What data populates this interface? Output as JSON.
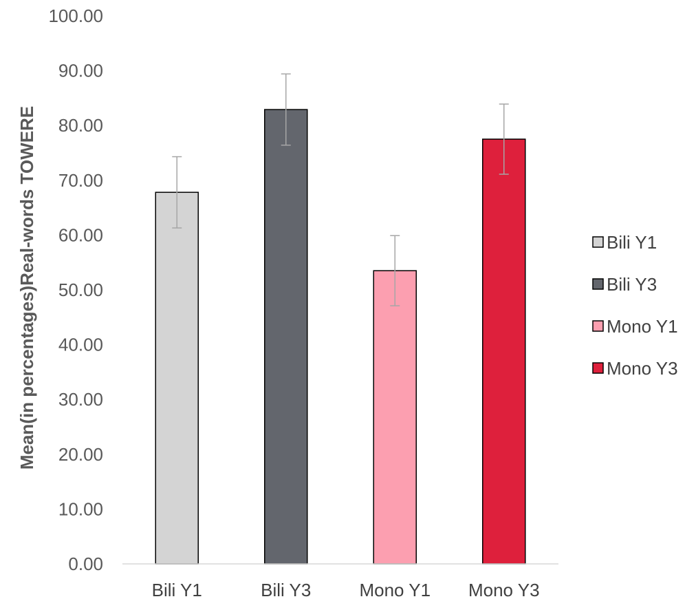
{
  "chart_data": {
    "type": "bar",
    "title": "",
    "xlabel": "",
    "ylabel": "Mean(in percentages)Real-words TOWERE",
    "ylim": [
      0,
      100
    ],
    "yticks": [
      "0.00",
      "10.00",
      "20.00",
      "30.00",
      "40.00",
      "50.00",
      "60.00",
      "70.00",
      "80.00",
      "90.00",
      "100.00"
    ],
    "categories": [
      "Bili Y1",
      "Bili Y3",
      "Mono Y1",
      "Mono Y3"
    ],
    "values": [
      67.8,
      82.9,
      53.5,
      77.5
    ],
    "error": [
      6.5,
      6.5,
      6.4,
      6.4
    ],
    "colors": [
      "#d4d4d4",
      "#63666d",
      "#fc9fb0",
      "#de203c"
    ],
    "legend": {
      "position": "right",
      "entries": [
        "Bili Y1",
        "Bili Y3",
        "Mono Y1",
        "Mono Y3"
      ]
    },
    "grid": false
  }
}
